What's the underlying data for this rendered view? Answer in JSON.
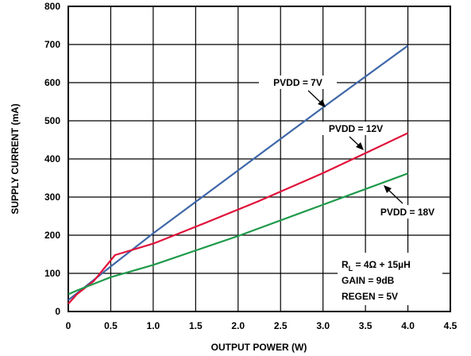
{
  "chart_data": {
    "type": "line",
    "title": "",
    "xlabel": "OUTPUT POWER (W)",
    "ylabel": "SUPPLY CURRENT (mA)",
    "xlim": [
      0,
      4.5
    ],
    "ylim": [
      0,
      800
    ],
    "xticks": [
      0,
      0.5,
      1.0,
      1.5,
      2.0,
      2.5,
      3.0,
      3.5,
      4.0,
      4.5
    ],
    "xtick_labels": [
      "0",
      "0.5",
      "1.0",
      "1.5",
      "2.0",
      "2.5",
      "3.0",
      "3.5",
      "4.0",
      "4.5"
    ],
    "yticks": [
      0,
      100,
      200,
      300,
      400,
      500,
      600,
      700,
      800
    ],
    "ytick_labels": [
      "0",
      "100",
      "200",
      "300",
      "400",
      "500",
      "600",
      "700",
      "800"
    ],
    "grid": true,
    "series": [
      {
        "name": "PVDD = 7V",
        "color": "#3f67a8",
        "x": [
          0,
          0.2,
          0.5,
          1.0,
          2.0,
          3.0,
          4.0
        ],
        "y": [
          30,
          65,
          118,
          205,
          370,
          535,
          697
        ]
      },
      {
        "name": "PVDD = 12V",
        "color": "#e0103a",
        "x": [
          0,
          0.1,
          0.3,
          0.55,
          1.0,
          1.5,
          2.25,
          3.0,
          3.5,
          4.0
        ],
        "y": [
          20,
          45,
          80,
          148,
          178,
          222,
          290,
          363,
          415,
          468
        ]
      },
      {
        "name": "PVDD = 18V",
        "color": "#1f9a4a",
        "x": [
          0,
          0.1,
          0.5,
          1.0,
          2.0,
          3.0,
          4.0
        ],
        "y": [
          45,
          55,
          90,
          122,
          198,
          280,
          362
        ]
      }
    ],
    "annotations": {
      "rl_main": "R",
      "rl_sub": "L",
      "rl_rest": " = 4Ω + 15µH",
      "gain": "GAIN = 9dB",
      "regen": "REGEN = 5V"
    }
  }
}
